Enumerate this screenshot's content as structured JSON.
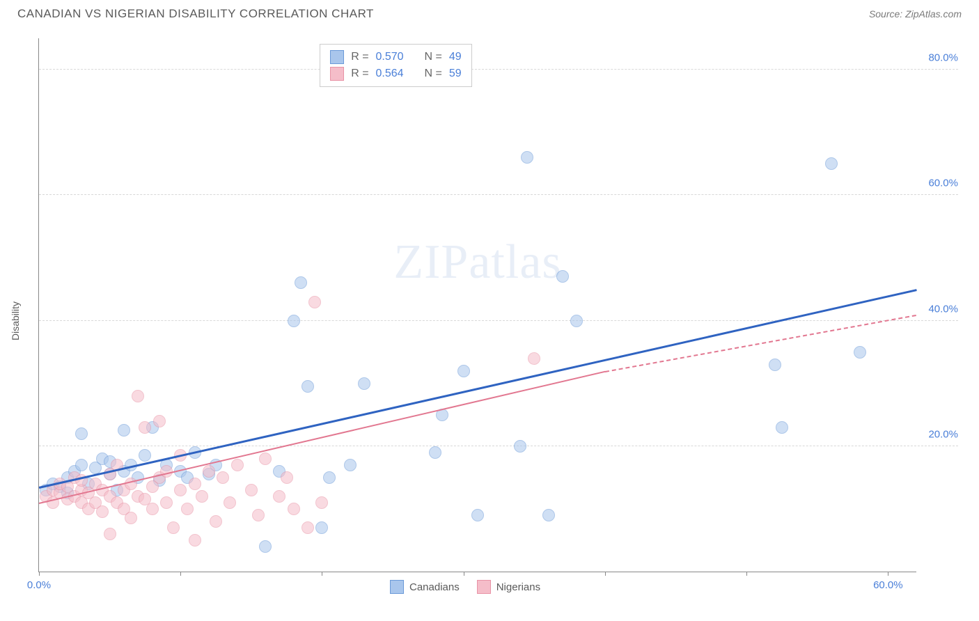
{
  "header": {
    "title": "CANADIAN VS NIGERIAN DISABILITY CORRELATION CHART",
    "source": "Source: ZipAtlas.com"
  },
  "watermark": {
    "text_bold": "ZIP",
    "text_thin": "atlas"
  },
  "chart": {
    "type": "scatter",
    "ylabel": "Disability",
    "xlim": [
      0,
      62
    ],
    "ylim": [
      0,
      85
    ],
    "background_color": "#ffffff",
    "grid_color": "#d8d8d8",
    "axis_color": "#888888",
    "tick_label_color": "#4a7fd8",
    "tick_fontsize": 15,
    "yticks": [
      20,
      40,
      60,
      80
    ],
    "ytick_labels": [
      "20.0%",
      "40.0%",
      "60.0%",
      "80.0%"
    ],
    "xticks": [
      0,
      10,
      20,
      30,
      40,
      50,
      60
    ],
    "xtick_labels": {
      "0": "0.0%",
      "60": "60.0%"
    },
    "marker_radius": 9,
    "marker_opacity": 0.55,
    "series": [
      {
        "name": "Canadians",
        "color": "#7ba7e0",
        "fill": "#a9c6ec",
        "stroke": "#6b9ad8",
        "trend_color": "#2f63c1",
        "trend_width": 2.5,
        "R": "0.570",
        "N": "49",
        "trend": {
          "x1": 0,
          "y1": 13.5,
          "x2": 62,
          "y2": 45
        },
        "points": [
          [
            0.5,
            13
          ],
          [
            1,
            14
          ],
          [
            1.5,
            13.5
          ],
          [
            2,
            15
          ],
          [
            2,
            12.5
          ],
          [
            2.5,
            16
          ],
          [
            3,
            17
          ],
          [
            3,
            22
          ],
          [
            3.5,
            14
          ],
          [
            4,
            16.5
          ],
          [
            4.5,
            18
          ],
          [
            5,
            15.5
          ],
          [
            5,
            17.5
          ],
          [
            5.5,
            13
          ],
          [
            6,
            16
          ],
          [
            6,
            22.5
          ],
          [
            6.5,
            17
          ],
          [
            7,
            15
          ],
          [
            7.5,
            18.5
          ],
          [
            8,
            23
          ],
          [
            8.5,
            14.5
          ],
          [
            9,
            17
          ],
          [
            10,
            16
          ],
          [
            10.5,
            15
          ],
          [
            11,
            19
          ],
          [
            12,
            15.5
          ],
          [
            12.5,
            17
          ],
          [
            16,
            4
          ],
          [
            17,
            16
          ],
          [
            18,
            40
          ],
          [
            18.5,
            46
          ],
          [
            19,
            29.5
          ],
          [
            20,
            7
          ],
          [
            20.5,
            15
          ],
          [
            22,
            17
          ],
          [
            23,
            30
          ],
          [
            28,
            19
          ],
          [
            28.5,
            25
          ],
          [
            30,
            32
          ],
          [
            31,
            9
          ],
          [
            34,
            20
          ],
          [
            34.5,
            66
          ],
          [
            36,
            9
          ],
          [
            37,
            47
          ],
          [
            38,
            40
          ],
          [
            52,
            33
          ],
          [
            52.5,
            23
          ],
          [
            56,
            65
          ],
          [
            58,
            35
          ]
        ]
      },
      {
        "name": "Nigerians",
        "color": "#f0a8b8",
        "fill": "#f5bdc9",
        "stroke": "#e893a6",
        "trend_color": "#e27790",
        "trend_width": 2,
        "R": "0.564",
        "N": "59",
        "trend_solid": {
          "x1": 0,
          "y1": 11,
          "x2": 40,
          "y2": 32
        },
        "trend_dashed": {
          "x1": 40,
          "y1": 32,
          "x2": 62,
          "y2": 41
        },
        "points": [
          [
            0.5,
            12
          ],
          [
            1,
            11
          ],
          [
            1,
            13
          ],
          [
            1.5,
            12.5
          ],
          [
            1.5,
            14
          ],
          [
            2,
            11.5
          ],
          [
            2,
            13.5
          ],
          [
            2.5,
            12
          ],
          [
            2.5,
            15
          ],
          [
            3,
            11
          ],
          [
            3,
            13
          ],
          [
            3,
            14.5
          ],
          [
            3.5,
            12.5
          ],
          [
            3.5,
            10
          ],
          [
            4,
            14
          ],
          [
            4,
            11
          ],
          [
            4.5,
            13
          ],
          [
            4.5,
            9.5
          ],
          [
            5,
            12
          ],
          [
            5,
            15.5
          ],
          [
            5,
            6
          ],
          [
            5.5,
            11
          ],
          [
            5.5,
            17
          ],
          [
            6,
            13
          ],
          [
            6,
            10
          ],
          [
            6.5,
            14
          ],
          [
            6.5,
            8.5
          ],
          [
            7,
            12
          ],
          [
            7,
            28
          ],
          [
            7.5,
            11.5
          ],
          [
            7.5,
            23
          ],
          [
            8,
            13.5
          ],
          [
            8,
            10
          ],
          [
            8.5,
            15
          ],
          [
            8.5,
            24
          ],
          [
            9,
            11
          ],
          [
            9,
            16
          ],
          [
            9.5,
            7
          ],
          [
            10,
            13
          ],
          [
            10,
            18.5
          ],
          [
            10.5,
            10
          ],
          [
            11,
            14
          ],
          [
            11,
            5
          ],
          [
            11.5,
            12
          ],
          [
            12,
            16
          ],
          [
            12.5,
            8
          ],
          [
            13,
            15
          ],
          [
            13.5,
            11
          ],
          [
            14,
            17
          ],
          [
            15,
            13
          ],
          [
            15.5,
            9
          ],
          [
            16,
            18
          ],
          [
            17,
            12
          ],
          [
            17.5,
            15
          ],
          [
            18,
            10
          ],
          [
            19,
            7
          ],
          [
            19.5,
            43
          ],
          [
            20,
            11
          ],
          [
            35,
            34
          ]
        ]
      }
    ],
    "legend_top": {
      "border_color": "#cccccc",
      "bg": "#ffffff"
    },
    "legend_bottom": [
      {
        "label": "Canadians",
        "fill": "#a9c6ec",
        "stroke": "#6b9ad8"
      },
      {
        "label": "Nigerians",
        "fill": "#f5bdc9",
        "stroke": "#e893a6"
      }
    ]
  }
}
